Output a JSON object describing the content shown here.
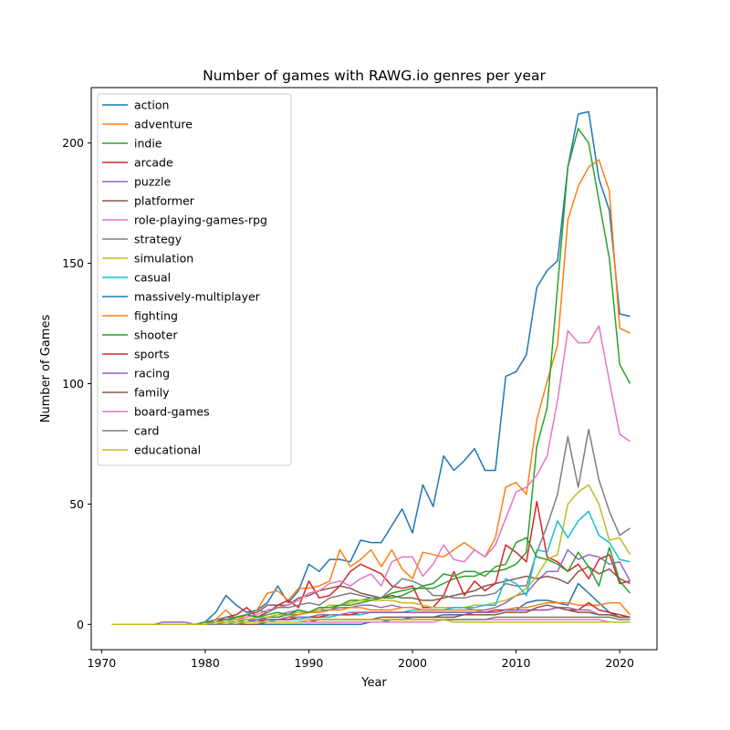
{
  "chart_data": {
    "type": "line",
    "title": "Number of games with RAWG.io genres per year",
    "xlabel": "Year",
    "ylabel": "Number of Games",
    "xlim": [
      1969,
      2023.6
    ],
    "ylim": [
      -10.5,
      223
    ],
    "xticks": [
      1970,
      1980,
      1990,
      2000,
      2010,
      2020
    ],
    "yticks": [
      0,
      50,
      100,
      150,
      200
    ],
    "grid": false,
    "legend_position": "top-left",
    "x": [
      1971,
      1972,
      1973,
      1974,
      1975,
      1976,
      1977,
      1978,
      1979,
      1980,
      1981,
      1982,
      1983,
      1984,
      1985,
      1986,
      1987,
      1988,
      1989,
      1990,
      1991,
      1992,
      1993,
      1994,
      1995,
      1996,
      1997,
      1998,
      1999,
      2000,
      2001,
      2002,
      2003,
      2004,
      2005,
      2006,
      2007,
      2008,
      2009,
      2010,
      2011,
      2012,
      2013,
      2014,
      2015,
      2016,
      2017,
      2018,
      2019,
      2020,
      2021
    ],
    "series": [
      {
        "name": "action",
        "color": "#1f77b4",
        "values": [
          0,
          0,
          0,
          0,
          0,
          0,
          0,
          0,
          0,
          1,
          5,
          12,
          8,
          5,
          6,
          9,
          16,
          9,
          14,
          25,
          22,
          27,
          27,
          26,
          35,
          34,
          34,
          41,
          48,
          38,
          58,
          49,
          70,
          64,
          68,
          73,
          64,
          64,
          103,
          105,
          112,
          140,
          147,
          151,
          190,
          212,
          213,
          185,
          172,
          129,
          128
        ]
      },
      {
        "name": "adventure",
        "color": "#ff7f0e",
        "values": [
          0,
          0,
          0,
          0,
          0,
          0,
          0,
          0,
          0,
          0,
          2,
          6,
          2,
          4,
          6,
          13,
          14,
          10,
          15,
          15,
          16,
          18,
          31,
          24,
          27,
          31,
          24,
          31,
          23,
          19,
          30,
          29,
          28,
          31,
          34,
          31,
          28,
          36,
          57,
          59,
          54,
          85,
          101,
          116,
          168,
          182,
          190,
          193,
          180,
          123,
          121
        ]
      },
      {
        "name": "indie",
        "color": "#2ca02c",
        "values": [
          0,
          0,
          0,
          0,
          0,
          0,
          0,
          0,
          0,
          0,
          0,
          1,
          1,
          2,
          1,
          3,
          3,
          4,
          4,
          5,
          5,
          6,
          8,
          10,
          10,
          11,
          11,
          13,
          14,
          15,
          15,
          15,
          17,
          19,
          20,
          20,
          22,
          22,
          23,
          25,
          30,
          74,
          90,
          140,
          190,
          206,
          200,
          176,
          152,
          108,
          100
        ]
      },
      {
        "name": "arcade",
        "color": "#d62728",
        "values": [
          0,
          0,
          0,
          0,
          0,
          0,
          0,
          0,
          0,
          0,
          1,
          3,
          4,
          7,
          3,
          5,
          8,
          10,
          7,
          18,
          11,
          12,
          16,
          22,
          25,
          23,
          21,
          16,
          15,
          16,
          7,
          7,
          12,
          22,
          12,
          18,
          14,
          17,
          33,
          30,
          26,
          51,
          28,
          26,
          22,
          25,
          19,
          27,
          29,
          17,
          18
        ]
      },
      {
        "name": "puzzle",
        "color": "#9467bd",
        "values": [
          0,
          0,
          0,
          0,
          0,
          1,
          1,
          1,
          0,
          0,
          1,
          2,
          2,
          2,
          2,
          3,
          4,
          5,
          6,
          5,
          6,
          6,
          7,
          7,
          8,
          8,
          7,
          8,
          7,
          7,
          6,
          6,
          6,
          7,
          7,
          6,
          6,
          7,
          9,
          12,
          13,
          18,
          22,
          22,
          31,
          27,
          29,
          28,
          25,
          26,
          18
        ]
      },
      {
        "name": "platformer",
        "color": "#8c564b",
        "values": [
          0,
          0,
          0,
          0,
          0,
          0,
          0,
          0,
          0,
          0,
          1,
          2,
          3,
          4,
          5,
          8,
          8,
          8,
          11,
          12,
          14,
          15,
          16,
          15,
          13,
          12,
          11,
          12,
          11,
          11,
          10,
          10,
          11,
          12,
          13,
          14,
          16,
          17,
          18,
          19,
          20,
          19,
          20,
          19,
          17,
          22,
          24,
          21,
          23,
          19,
          17
        ]
      },
      {
        "name": "role-playing-games-rpg",
        "color": "#e377c2",
        "values": [
          0,
          0,
          0,
          0,
          0,
          0,
          0,
          0,
          0,
          0,
          0,
          1,
          2,
          3,
          4,
          6,
          7,
          8,
          10,
          13,
          14,
          17,
          18,
          16,
          19,
          21,
          16,
          26,
          28,
          28,
          20,
          25,
          33,
          27,
          26,
          31,
          28,
          33,
          44,
          55,
          57,
          62,
          70,
          93,
          122,
          117,
          117,
          124,
          101,
          79,
          76
        ]
      },
      {
        "name": "strategy",
        "color": "#7f7f7f",
        "values": [
          0,
          0,
          0,
          0,
          0,
          0,
          0,
          0,
          0,
          1,
          2,
          3,
          3,
          4,
          6,
          5,
          7,
          7,
          8,
          9,
          8,
          11,
          12,
          13,
          12,
          11,
          11,
          15,
          19,
          18,
          16,
          12,
          12,
          11,
          11,
          12,
          12,
          13,
          17,
          16,
          16,
          30,
          41,
          54,
          78,
          57,
          81,
          60,
          47,
          37,
          40
        ]
      },
      {
        "name": "simulation",
        "color": "#bcbd22",
        "values": [
          0,
          0,
          0,
          0,
          0,
          0,
          0,
          0,
          0,
          0,
          1,
          1,
          2,
          2,
          3,
          3,
          4,
          4,
          5,
          5,
          6,
          8,
          8,
          9,
          10,
          10,
          10,
          10,
          9,
          9,
          8,
          7,
          7,
          7,
          7,
          8,
          8,
          9,
          10,
          12,
          15,
          20,
          27,
          29,
          50,
          55,
          58,
          50,
          35,
          36,
          29
        ]
      },
      {
        "name": "casual",
        "color": "#17becf",
        "values": [
          0,
          0,
          0,
          0,
          0,
          0,
          0,
          0,
          0,
          0,
          0,
          0,
          1,
          1,
          1,
          1,
          2,
          2,
          2,
          3,
          3,
          3,
          4,
          4,
          4,
          5,
          5,
          5,
          5,
          6,
          6,
          6,
          6,
          7,
          7,
          7,
          8,
          8,
          19,
          17,
          12,
          31,
          30,
          43,
          36,
          43,
          47,
          37,
          34,
          27,
          26
        ]
      },
      {
        "name": "massively-multiplayer",
        "color": "#1f77b4",
        "values": [
          0,
          0,
          0,
          0,
          0,
          0,
          0,
          0,
          0,
          0,
          0,
          0,
          0,
          0,
          0,
          0,
          0,
          0,
          0,
          0,
          0,
          0,
          0,
          0,
          0,
          1,
          1,
          2,
          2,
          3,
          3,
          3,
          4,
          4,
          4,
          5,
          5,
          5,
          6,
          6,
          9,
          10,
          10,
          9,
          8,
          17,
          13,
          9,
          5,
          3,
          3
        ]
      },
      {
        "name": "fighting",
        "color": "#ff7f0e",
        "values": [
          0,
          0,
          0,
          0,
          0,
          0,
          0,
          0,
          0,
          0,
          0,
          1,
          1,
          1,
          1,
          2,
          2,
          3,
          4,
          5,
          5,
          6,
          6,
          7,
          7,
          6,
          6,
          6,
          7,
          7,
          6,
          6,
          6,
          6,
          6,
          6,
          5,
          5,
          6,
          7,
          7,
          8,
          9,
          9,
          9,
          8,
          8,
          8,
          9,
          9,
          4
        ]
      },
      {
        "name": "shooter",
        "color": "#2ca02c",
        "values": [
          0,
          0,
          0,
          0,
          0,
          0,
          0,
          0,
          0,
          1,
          1,
          2,
          3,
          4,
          3,
          4,
          5,
          4,
          6,
          5,
          7,
          7,
          8,
          8,
          9,
          10,
          11,
          11,
          12,
          14,
          16,
          17,
          21,
          20,
          22,
          22,
          20,
          24,
          25,
          34,
          36,
          28,
          27,
          25,
          22,
          30,
          24,
          16,
          32,
          18,
          13
        ]
      },
      {
        "name": "sports",
        "color": "#d62728",
        "values": [
          0,
          0,
          0,
          0,
          0,
          0,
          0,
          0,
          0,
          0,
          1,
          1,
          1,
          1,
          1,
          2,
          2,
          2,
          3,
          3,
          3,
          4,
          4,
          4,
          5,
          5,
          5,
          5,
          5,
          5,
          5,
          5,
          5,
          5,
          5,
          5,
          5,
          6,
          6,
          6,
          6,
          6,
          6,
          7,
          6,
          6,
          9,
          6,
          5,
          4,
          3
        ]
      },
      {
        "name": "racing",
        "color": "#9467bd",
        "values": [
          0,
          0,
          0,
          0,
          0,
          0,
          0,
          0,
          0,
          0,
          1,
          1,
          1,
          1,
          2,
          2,
          2,
          3,
          3,
          3,
          4,
          4,
          4,
          5,
          5,
          5,
          5,
          5,
          5,
          5,
          5,
          5,
          5,
          5,
          5,
          5,
          5,
          5,
          6,
          6,
          6,
          6,
          6,
          7,
          7,
          6,
          6,
          4,
          4,
          3,
          3
        ]
      },
      {
        "name": "family",
        "color": "#8c564b",
        "values": [
          0,
          0,
          0,
          0,
          0,
          0,
          0,
          0,
          0,
          0,
          0,
          0,
          0,
          0,
          0,
          1,
          1,
          1,
          1,
          1,
          2,
          2,
          2,
          2,
          2,
          2,
          3,
          3,
          3,
          3,
          3,
          3,
          3,
          3,
          4,
          4,
          4,
          4,
          5,
          5,
          5,
          7,
          8,
          7,
          6,
          5,
          5,
          4,
          4,
          3,
          3
        ]
      },
      {
        "name": "board-games",
        "color": "#e377c2",
        "values": [
          0,
          0,
          0,
          0,
          0,
          0,
          0,
          0,
          0,
          0,
          0,
          0,
          0,
          1,
          1,
          1,
          1,
          1,
          1,
          1,
          1,
          1,
          1,
          1,
          1,
          1,
          1,
          1,
          1,
          1,
          1,
          1,
          2,
          2,
          2,
          2,
          2,
          2,
          2,
          2,
          2,
          2,
          2,
          2,
          2,
          2,
          2,
          2,
          1,
          1,
          1
        ]
      },
      {
        "name": "card",
        "color": "#7f7f7f",
        "values": [
          0,
          0,
          0,
          0,
          0,
          0,
          0,
          0,
          0,
          0,
          0,
          0,
          0,
          1,
          1,
          1,
          1,
          1,
          1,
          2,
          2,
          2,
          2,
          2,
          2,
          2,
          2,
          2,
          2,
          2,
          2,
          2,
          2,
          2,
          2,
          2,
          2,
          3,
          3,
          3,
          3,
          3,
          3,
          3,
          3,
          3,
          3,
          3,
          3,
          2,
          2
        ]
      },
      {
        "name": "educational",
        "color": "#bcbd22",
        "values": [
          0,
          0,
          0,
          0,
          0,
          0,
          0,
          0,
          0,
          0,
          1,
          1,
          1,
          1,
          1,
          1,
          1,
          1,
          1,
          2,
          2,
          2,
          2,
          2,
          2,
          2,
          2,
          2,
          2,
          2,
          2,
          2,
          2,
          1,
          1,
          1,
          1,
          1,
          1,
          1,
          1,
          1,
          1,
          1,
          1,
          1,
          1,
          1,
          1,
          1,
          1
        ]
      }
    ]
  }
}
